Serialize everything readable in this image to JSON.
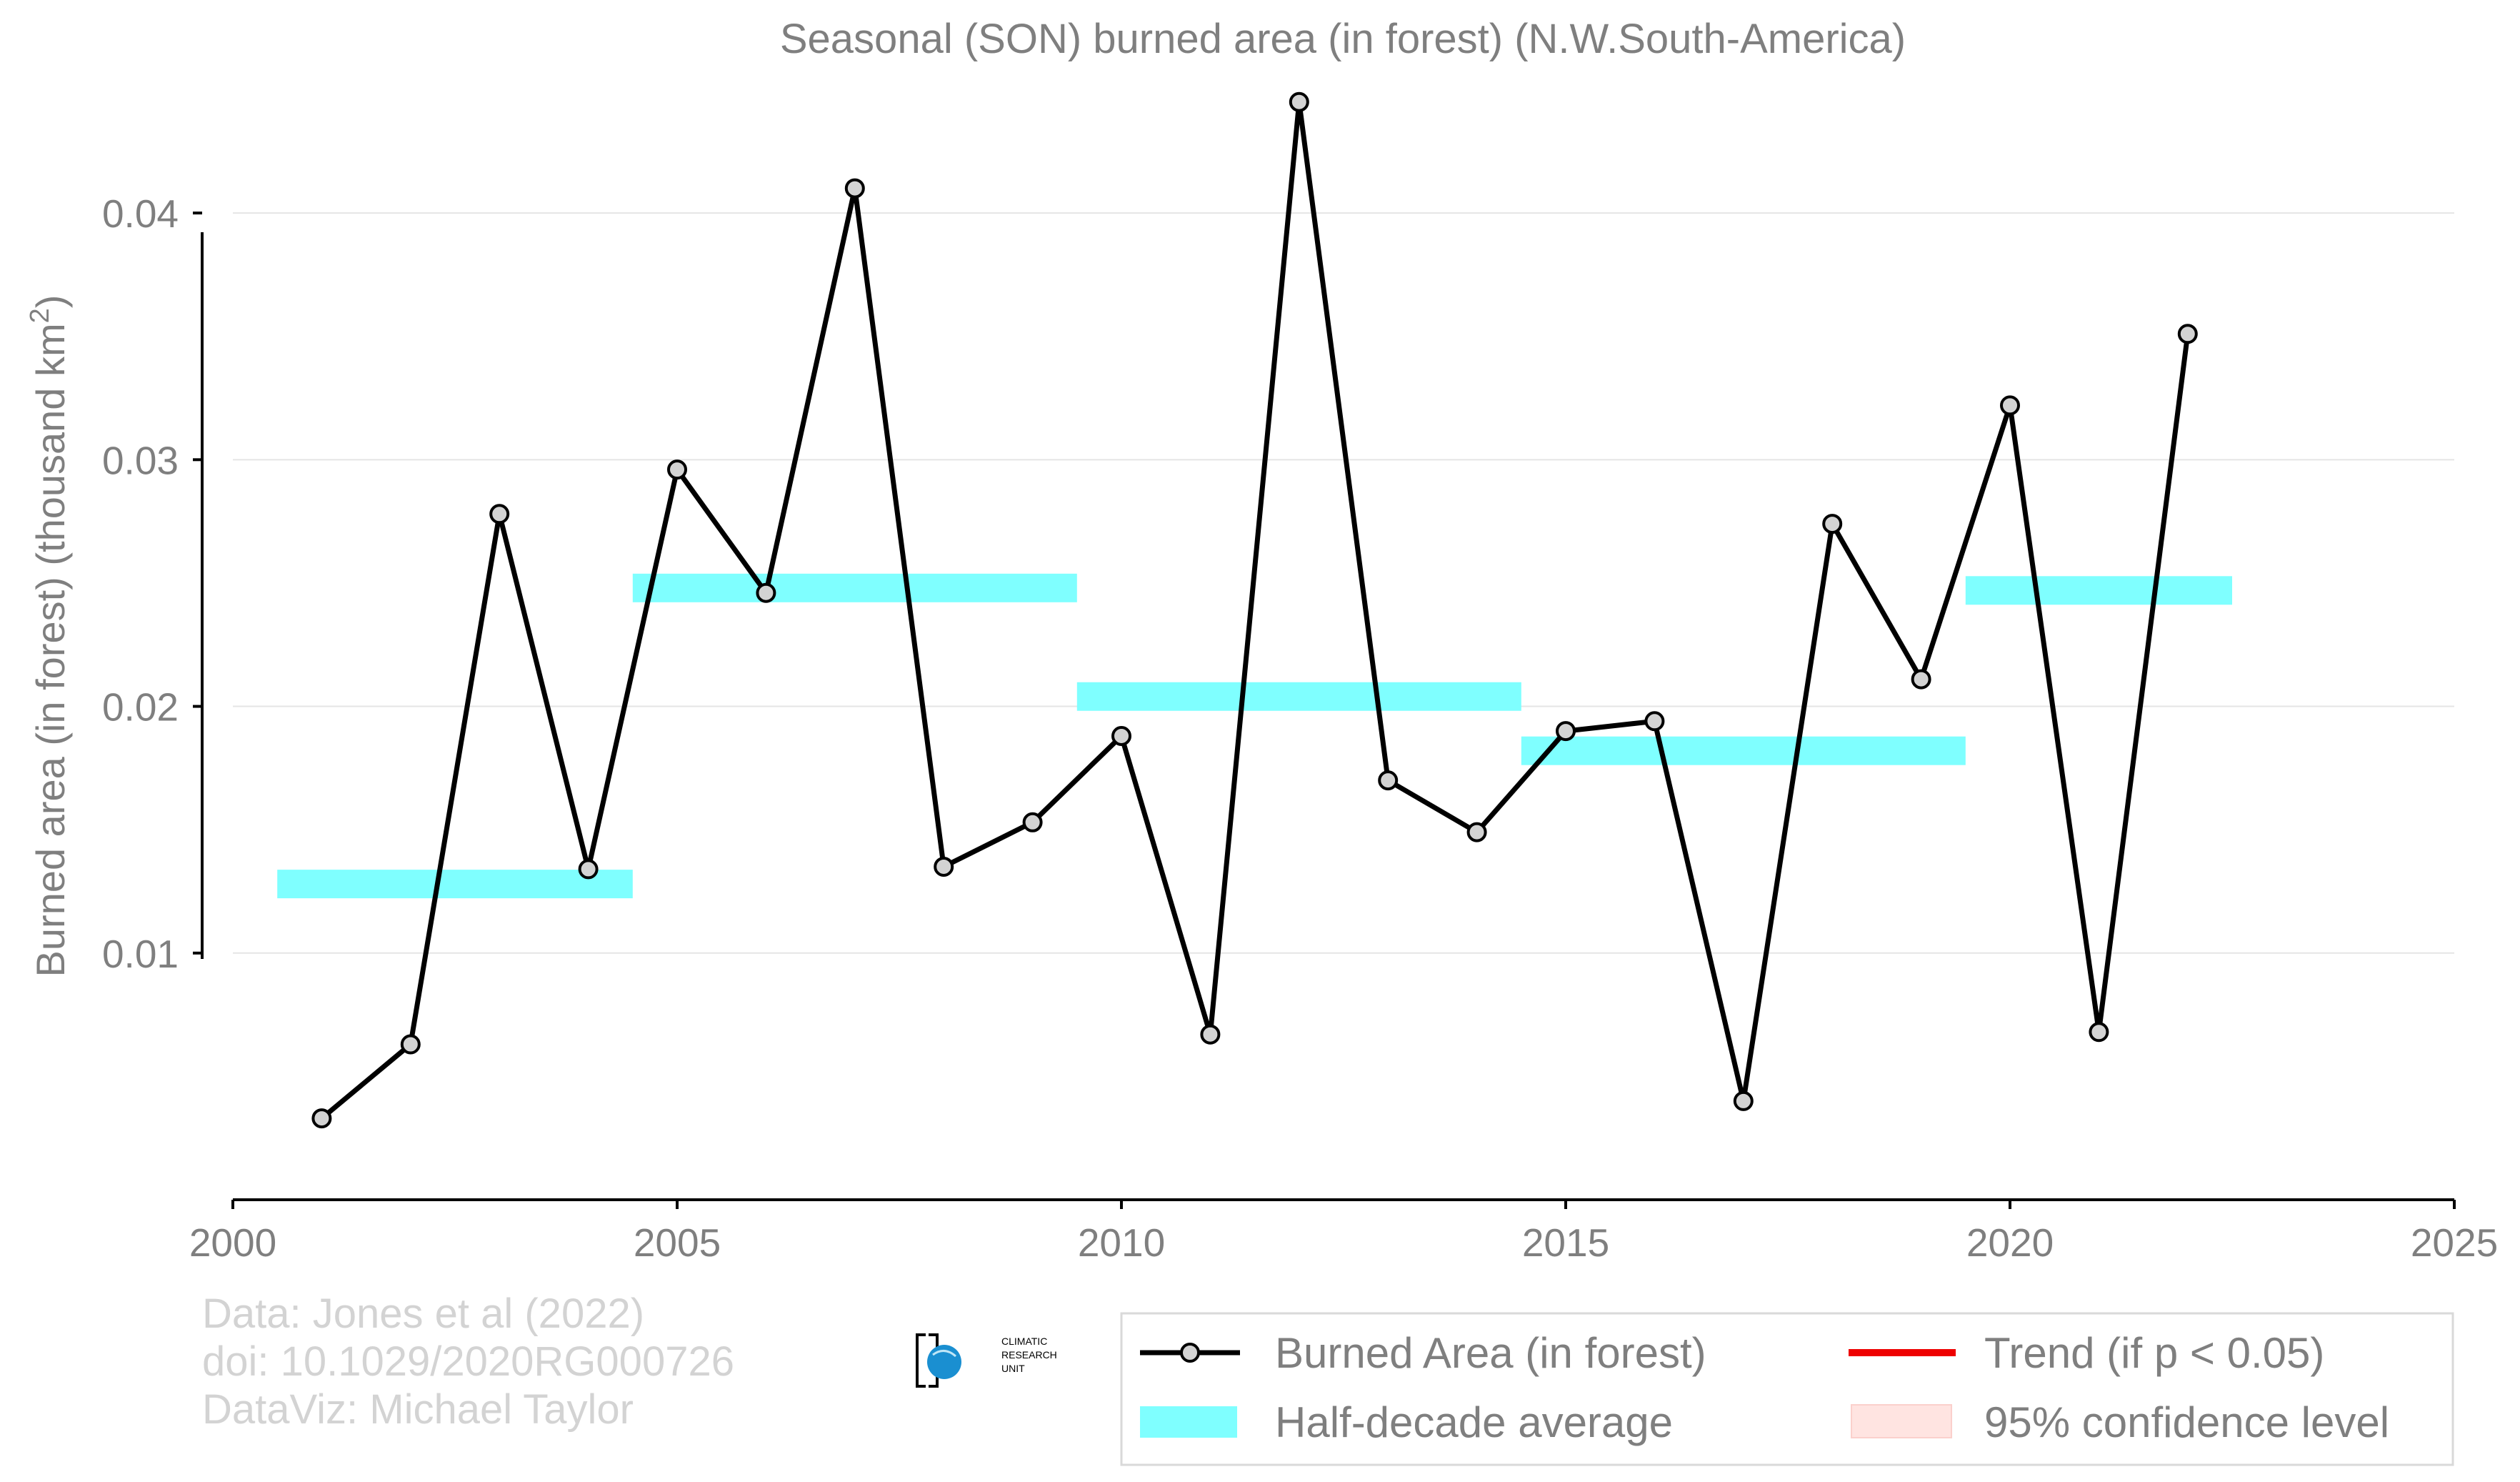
{
  "chart_data": {
    "type": "line",
    "title": "Seasonal (SON) burned area (in forest) (N.W.South-America)",
    "xlabel": "",
    "ylabel": "Burned area (in forest) (thousand km",
    "ylabel_sup": "2",
    "ylabel_close": ")",
    "xlim": [
      2000,
      2025
    ],
    "ylim": [
      0.0,
      0.044
    ],
    "x_ticks": [
      2000,
      2005,
      2010,
      2015,
      2020,
      2025
    ],
    "x_tick_labels": [
      "2000",
      "2005",
      "2010",
      "2015",
      "2020",
      "2025"
    ],
    "y_ticks": [
      0.01,
      0.02,
      0.03,
      0.04
    ],
    "y_tick_labels": [
      "0.01",
      "0.02",
      "0.03",
      "0.04"
    ],
    "grid": "horizontal",
    "legend_position": "bottom-right",
    "series": [
      {
        "name": "Burned Area (in forest)",
        "color": "#000000",
        "marker_fill": "#d3d3d3",
        "x": [
          2001,
          2002,
          2003,
          2004,
          2005,
          2006,
          2007,
          2008,
          2009,
          2010,
          2011,
          2012,
          2013,
          2014,
          2015,
          2016,
          2017,
          2018,
          2019,
          2020,
          2021,
          2022
        ],
        "values": [
          0.0033,
          0.0063,
          0.0278,
          0.0134,
          0.0296,
          0.0246,
          0.041,
          0.0135,
          0.0153,
          0.0188,
          0.0067,
          0.0445,
          0.017,
          0.0149,
          0.019,
          0.0194,
          0.004,
          0.0274,
          0.0211,
          0.0322,
          0.0068,
          0.0351
        ]
      }
    ],
    "half_decade_average": {
      "name": "Half-decade average",
      "color": "#7fffff",
      "segments": [
        {
          "x_start": 2000.5,
          "x_end": 2004.5,
          "value": 0.0128
        },
        {
          "x_start": 2004.5,
          "x_end": 2009.5,
          "value": 0.0248
        },
        {
          "x_start": 2009.5,
          "x_end": 2014.5,
          "value": 0.0204
        },
        {
          "x_start": 2014.5,
          "x_end": 2019.5,
          "value": 0.0182
        },
        {
          "x_start": 2019.5,
          "x_end": 2022.5,
          "value": 0.0247
        }
      ]
    },
    "legend": [
      {
        "label": "Burned Area (in forest)",
        "kind": "line-marker",
        "color": "#000000"
      },
      {
        "label": "Trend (if p < 0.05)",
        "kind": "line",
        "color": "#ee0000"
      },
      {
        "label": "Half-decade average",
        "kind": "band",
        "color": "#7fffff"
      },
      {
        "label": "95% confidence level",
        "kind": "band",
        "color": "#ffe4e1"
      }
    ]
  },
  "credits": {
    "line1": "Data: Jones et al (2022)",
    "line2": "doi: 10.1029/2020RG000726",
    "line3": "DataViz: Michael Taylor"
  },
  "logo": {
    "line1": "CLIMATIC",
    "line2": "RESEARCH",
    "line3": "UNIT",
    "color": "#1a8fd1"
  }
}
